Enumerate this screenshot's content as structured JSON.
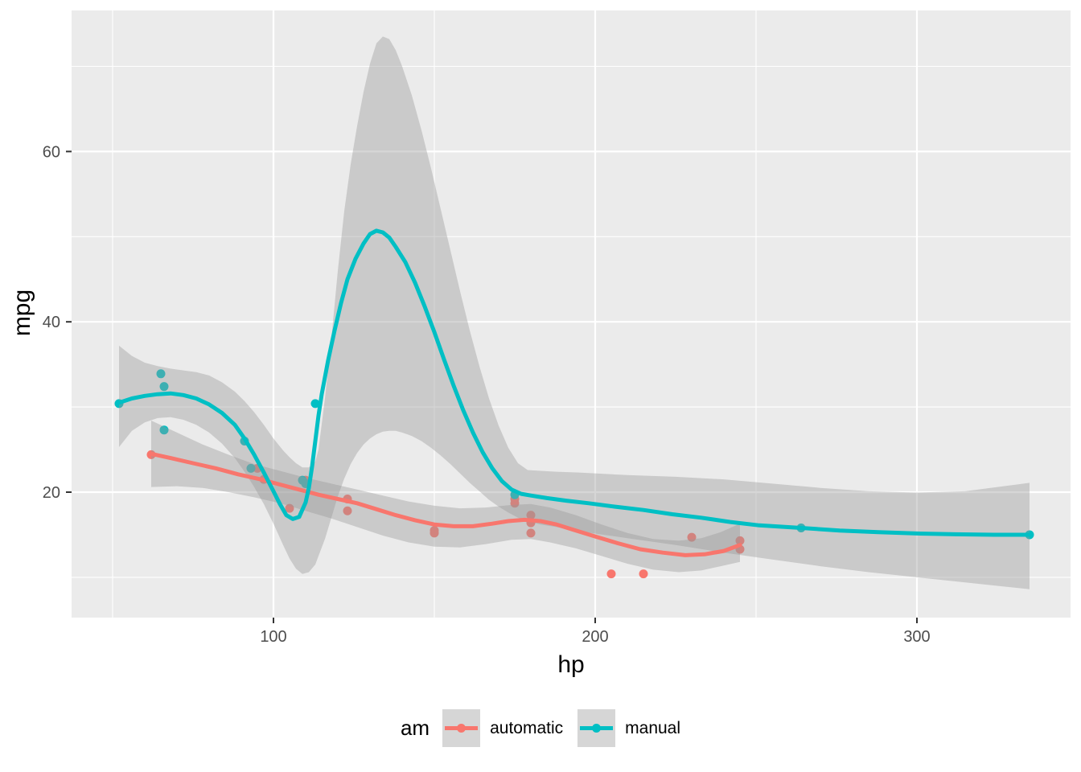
{
  "chart_data": {
    "type": "scatter",
    "title": "",
    "xlabel": "hp",
    "ylabel": "mpg",
    "xlim": [
      37,
      348
    ],
    "ylim": [
      5.2,
      77
    ],
    "x_major_ticks": [
      100,
      200,
      300
    ],
    "x_minor_ticks": [
      50,
      150,
      250,
      350
    ],
    "y_major_ticks": [
      20,
      40,
      60
    ],
    "y_minor_ticks": [
      10,
      30,
      50,
      70
    ],
    "grid": true,
    "panel_bg": "#EBEBEB",
    "grid_color": "#FFFFFF",
    "tick_color": "#333333",
    "tick_label_color": "#4D4D4D",
    "ribbon_color": "rgba(153,153,153,0.4)",
    "legend_position": "bottom",
    "series": [
      {
        "name": "automatic",
        "color": "#F8766D",
        "points": [
          [
            110,
            21.4
          ],
          [
            175,
            18.7
          ],
          [
            105,
            18.1
          ],
          [
            245,
            14.3
          ],
          [
            62,
            24.4
          ],
          [
            95,
            22.8
          ],
          [
            123,
            19.2
          ],
          [
            123,
            17.8
          ],
          [
            180,
            16.4
          ],
          [
            180,
            17.3
          ],
          [
            180,
            15.2
          ],
          [
            205,
            10.4
          ],
          [
            215,
            10.4
          ],
          [
            230,
            14.7
          ],
          [
            97,
            21.5
          ],
          [
            150,
            15.5
          ],
          [
            150,
            15.2
          ],
          [
            245,
            13.3
          ],
          [
            175,
            19.2
          ]
        ],
        "smooth": [
          [
            62,
            24.5
          ],
          [
            68,
            24.0
          ],
          [
            75,
            23.4
          ],
          [
            82,
            22.8
          ],
          [
            89,
            22.1
          ],
          [
            96,
            21.5
          ],
          [
            102,
            20.9
          ],
          [
            108,
            20.3
          ],
          [
            114,
            19.7
          ],
          [
            120,
            19.2
          ],
          [
            126,
            18.7
          ],
          [
            132,
            18.0
          ],
          [
            138,
            17.3
          ],
          [
            144,
            16.7
          ],
          [
            150,
            16.2
          ],
          [
            156,
            16.0
          ],
          [
            162,
            16.0
          ],
          [
            168,
            16.3
          ],
          [
            173,
            16.6
          ],
          [
            178,
            16.75
          ],
          [
            183,
            16.6
          ],
          [
            188,
            16.2
          ],
          [
            194,
            15.5
          ],
          [
            200,
            14.8
          ],
          [
            207,
            14.0
          ],
          [
            214,
            13.3
          ],
          [
            221,
            12.9
          ],
          [
            228,
            12.6
          ],
          [
            234,
            12.7
          ],
          [
            240,
            13.1
          ],
          [
            245,
            13.8
          ]
        ],
        "ribbon": [
          [
            62,
            20.6,
            28.4
          ],
          [
            70,
            20.7,
            27.0
          ],
          [
            78,
            20.5,
            25.6
          ],
          [
            86,
            20.0,
            24.4
          ],
          [
            94,
            19.4,
            23.3
          ],
          [
            102,
            18.7,
            22.5
          ],
          [
            110,
            17.8,
            21.7
          ],
          [
            118,
            16.9,
            21.0
          ],
          [
            126,
            15.9,
            20.3
          ],
          [
            134,
            14.9,
            19.6
          ],
          [
            142,
            14.1,
            18.9
          ],
          [
            150,
            13.6,
            18.4
          ],
          [
            158,
            13.5,
            18.1
          ],
          [
            166,
            13.9,
            18.2
          ],
          [
            174,
            14.4,
            18.5
          ],
          [
            180,
            14.5,
            18.6
          ],
          [
            186,
            14.1,
            18.2
          ],
          [
            194,
            13.4,
            17.3
          ],
          [
            202,
            12.5,
            16.2
          ],
          [
            210,
            11.6,
            15.2
          ],
          [
            218,
            10.9,
            14.5
          ],
          [
            226,
            10.6,
            14.3
          ],
          [
            233,
            10.8,
            14.6
          ],
          [
            239,
            11.3,
            15.3
          ],
          [
            245,
            11.8,
            16.3
          ]
        ]
      },
      {
        "name": "manual",
        "color": "#00BFC4",
        "points": [
          [
            110,
            21.0
          ],
          [
            110,
            21.0
          ],
          [
            93,
            22.8
          ],
          [
            66,
            32.4
          ],
          [
            52,
            30.4
          ],
          [
            65,
            33.9
          ],
          [
            66,
            27.3
          ],
          [
            91,
            26.0
          ],
          [
            113,
            30.4
          ],
          [
            264,
            15.8
          ],
          [
            175,
            19.7
          ],
          [
            335,
            15.0
          ],
          [
            109,
            21.4
          ]
        ],
        "smooth": [
          [
            52,
            30.5
          ],
          [
            56,
            31.0
          ],
          [
            60,
            31.3
          ],
          [
            64,
            31.5
          ],
          [
            68,
            31.6
          ],
          [
            72,
            31.4
          ],
          [
            76,
            31.0
          ],
          [
            80,
            30.3
          ],
          [
            84,
            29.3
          ],
          [
            88,
            27.9
          ],
          [
            91,
            26.3
          ],
          [
            94,
            24.4
          ],
          [
            97,
            22.3
          ],
          [
            100,
            20.1
          ],
          [
            102,
            18.6
          ],
          [
            104,
            17.3
          ],
          [
            106,
            16.85
          ],
          [
            108,
            17.1
          ],
          [
            110,
            18.8
          ],
          [
            111,
            20.5
          ],
          [
            112,
            23.0
          ],
          [
            113,
            26.0
          ],
          [
            114,
            29.0
          ],
          [
            115,
            31.5
          ],
          [
            117,
            35.5
          ],
          [
            119,
            39.0
          ],
          [
            121,
            42.2
          ],
          [
            123,
            45.0
          ],
          [
            125.5,
            47.4
          ],
          [
            128,
            49.2
          ],
          [
            130,
            50.3
          ],
          [
            132,
            50.7
          ],
          [
            134,
            50.5
          ],
          [
            136,
            49.9
          ],
          [
            138,
            48.8
          ],
          [
            141,
            47.0
          ],
          [
            144,
            44.6
          ],
          [
            147,
            41.8
          ],
          [
            150,
            38.8
          ],
          [
            153,
            35.6
          ],
          [
            156,
            32.5
          ],
          [
            159,
            29.6
          ],
          [
            162,
            27.0
          ],
          [
            165,
            24.7
          ],
          [
            168,
            22.8
          ],
          [
            171,
            21.3
          ],
          [
            174,
            20.3
          ],
          [
            177,
            19.8
          ],
          [
            180,
            19.6
          ],
          [
            185,
            19.3
          ],
          [
            191,
            19.0
          ],
          [
            198,
            18.7
          ],
          [
            206,
            18.3
          ],
          [
            215,
            17.9
          ],
          [
            224,
            17.4
          ],
          [
            233,
            17.0
          ],
          [
            242,
            16.5
          ],
          [
            251,
            16.1
          ],
          [
            264,
            15.8
          ],
          [
            276,
            15.5
          ],
          [
            288,
            15.3
          ],
          [
            300,
            15.15
          ],
          [
            312,
            15.05
          ],
          [
            324,
            15.0
          ],
          [
            335,
            15.0
          ]
        ],
        "ribbon": [
          [
            52,
            25.3,
            37.2
          ],
          [
            56,
            27.2,
            36.0
          ],
          [
            60,
            28.2,
            35.2
          ],
          [
            64,
            28.7,
            34.8
          ],
          [
            68,
            28.8,
            34.5
          ],
          [
            72,
            28.5,
            34.3
          ],
          [
            76,
            27.9,
            34.1
          ],
          [
            80,
            27.0,
            33.7
          ],
          [
            84,
            25.7,
            32.9
          ],
          [
            88,
            24.0,
            31.8
          ],
          [
            91,
            22.4,
            30.7
          ],
          [
            94,
            20.6,
            29.4
          ],
          [
            97,
            18.6,
            27.9
          ],
          [
            100,
            16.3,
            26.3
          ],
          [
            103,
            13.8,
            24.9
          ],
          [
            105,
            12.2,
            24.1
          ],
          [
            107,
            11.0,
            23.4
          ],
          [
            109,
            10.4,
            22.9
          ],
          [
            111,
            10.6,
            22.9
          ],
          [
            113,
            11.5,
            23.6
          ],
          [
            114,
            12.5,
            25.0
          ],
          [
            116,
            14.5,
            31.0
          ],
          [
            118,
            17.0,
            38.0
          ],
          [
            120,
            19.5,
            46.0
          ],
          [
            122,
            21.6,
            53.0
          ],
          [
            124,
            23.3,
            58.5
          ],
          [
            126,
            24.6,
            63.0
          ],
          [
            128,
            25.6,
            67.0
          ],
          [
            130,
            26.3,
            70.3
          ],
          [
            132,
            26.8,
            72.7
          ],
          [
            134,
            27.1,
            73.5
          ],
          [
            136,
            27.2,
            73.2
          ],
          [
            138,
            27.2,
            71.9
          ],
          [
            140,
            27.0,
            70.0
          ],
          [
            143,
            26.6,
            66.6
          ],
          [
            146,
            26.0,
            62.5
          ],
          [
            149,
            25.2,
            58.0
          ],
          [
            152,
            24.3,
            53.2
          ],
          [
            155,
            23.3,
            48.4
          ],
          [
            158,
            22.2,
            43.6
          ],
          [
            161,
            21.1,
            39.0
          ],
          [
            164,
            20.1,
            34.8
          ],
          [
            167,
            19.1,
            31.0
          ],
          [
            170,
            18.3,
            27.8
          ],
          [
            173,
            17.6,
            25.2
          ],
          [
            176,
            17.0,
            23.4
          ],
          [
            179,
            16.6,
            22.6
          ],
          [
            183,
            16.2,
            22.5
          ],
          [
            188,
            15.9,
            22.4
          ],
          [
            195,
            15.4,
            22.3
          ],
          [
            210,
            14.6,
            22.0
          ],
          [
            225,
            13.8,
            21.8
          ],
          [
            240,
            12.9,
            21.5
          ],
          [
            255,
            12.1,
            21.0
          ],
          [
            270,
            11.3,
            20.5
          ],
          [
            285,
            10.6,
            20.1
          ],
          [
            300,
            10.0,
            19.95
          ],
          [
            315,
            9.4,
            20.1
          ],
          [
            325,
            9.0,
            20.6
          ],
          [
            335,
            8.6,
            21.1
          ]
        ]
      }
    ]
  },
  "axes": {
    "x_title": "hp",
    "y_title": "mpg"
  },
  "legend": {
    "title": "am",
    "items": [
      {
        "label": "automatic",
        "color": "#F8766D"
      },
      {
        "label": "manual",
        "color": "#00BFC4"
      }
    ]
  }
}
